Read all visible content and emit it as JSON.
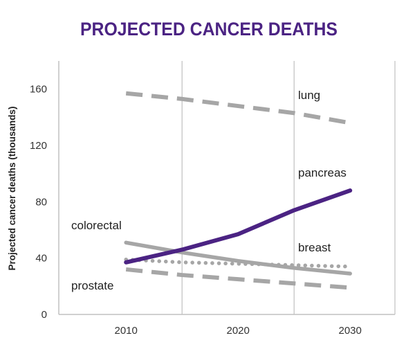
{
  "chart_data": {
    "type": "line",
    "title": "PROJECTED CANCER DEATHS",
    "ylabel": "Projected cancer deaths (thousands)",
    "xlabel": "",
    "x": [
      2010,
      2020,
      2030
    ],
    "xlim": [
      2004,
      2034
    ],
    "ylim": [
      0,
      180
    ],
    "yticks": [
      0,
      40,
      80,
      120,
      160
    ],
    "grid": "vertical lines only",
    "colors": {
      "title": "#4b2383",
      "pancreas": "#4b2383",
      "others": "#a6a6a6",
      "grid": "#c0c0c0",
      "tick_text": "#333333"
    },
    "series": [
      {
        "name": "lung",
        "style": "dashed",
        "points": [
          [
            2010,
            157
          ],
          [
            2015,
            153
          ],
          [
            2020,
            148
          ],
          [
            2025,
            143
          ],
          [
            2030,
            136
          ]
        ]
      },
      {
        "name": "pancreas",
        "style": "solid",
        "points": [
          [
            2010,
            37
          ],
          [
            2015,
            46
          ],
          [
            2020,
            57
          ],
          [
            2025,
            74
          ],
          [
            2030,
            88
          ]
        ]
      },
      {
        "name": "colorectal",
        "style": "solid",
        "points": [
          [
            2010,
            51
          ],
          [
            2015,
            44
          ],
          [
            2020,
            38
          ],
          [
            2025,
            33
          ],
          [
            2030,
            29
          ]
        ]
      },
      {
        "name": "breast",
        "style": "dotted",
        "points": [
          [
            2010,
            39
          ],
          [
            2015,
            37
          ],
          [
            2020,
            36
          ],
          [
            2025,
            35
          ],
          [
            2030,
            34
          ]
        ]
      },
      {
        "name": "prostate",
        "style": "dashed",
        "points": [
          [
            2010,
            32
          ],
          [
            2015,
            28
          ],
          [
            2020,
            25
          ],
          [
            2025,
            22
          ],
          [
            2030,
            19
          ]
        ]
      }
    ]
  }
}
